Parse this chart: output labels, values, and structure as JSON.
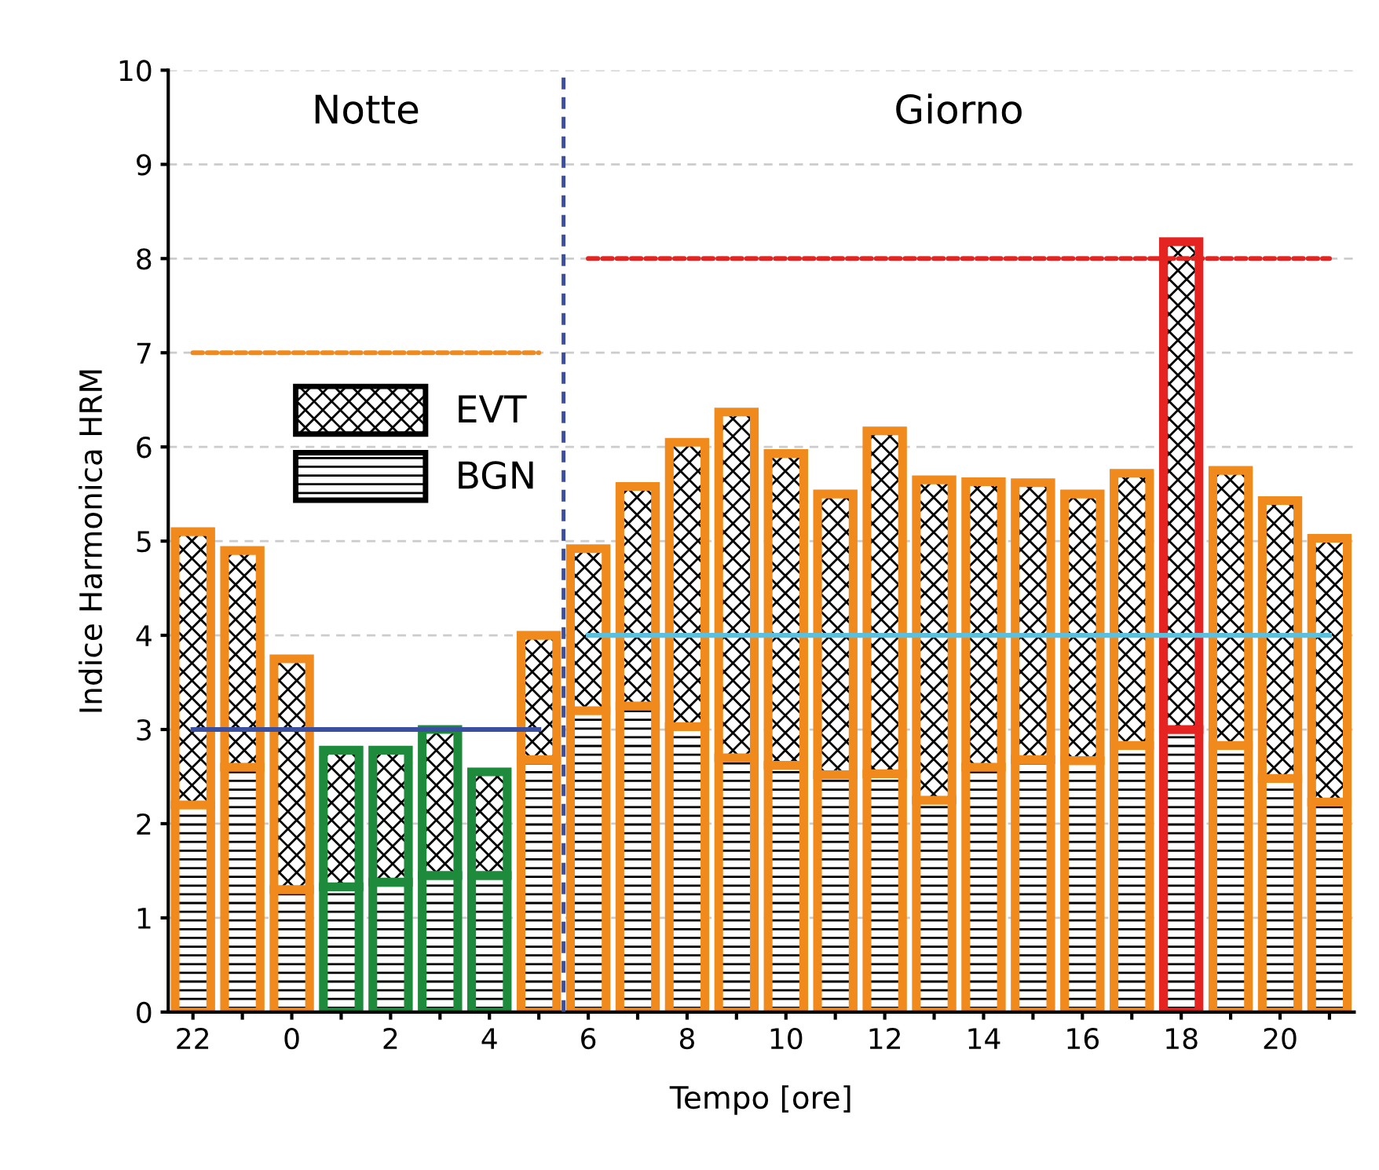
{
  "chart_data": {
    "type": "bar",
    "stacked": true,
    "xlabel": "Tempo [ore]",
    "ylabel": "Indice Harmonica HRM",
    "categories": [
      "22",
      null,
      "0",
      null,
      "2",
      null,
      "4",
      null,
      "6",
      null,
      "8",
      null,
      "10",
      null,
      "12",
      null,
      "14",
      null,
      "16",
      null,
      "18",
      null,
      "20",
      null
    ],
    "series": [
      {
        "name": "BGN",
        "color": "#000000",
        "colors": [
          "#f08a1d",
          "#f08a1d",
          "#f08a1d",
          "#1e8a3c",
          "#1e8a3c",
          "#1e8a3c",
          "#1e8a3c",
          "#f08a1d",
          "#f08a1d",
          "#f08a1d",
          "#f08a1d",
          "#f08a1d",
          "#f08a1d",
          "#f08a1d",
          "#f08a1d",
          "#f08a1d",
          "#f08a1d",
          "#f08a1d",
          "#f08a1d",
          "#f08a1d",
          "#e52421",
          "#f08a1d",
          "#f08a1d",
          "#f08a1d"
        ],
        "values": [
          2.2,
          2.6,
          1.3,
          1.33,
          1.38,
          1.45,
          1.45,
          2.68,
          3.2,
          3.25,
          3.03,
          2.7,
          2.62,
          2.52,
          2.53,
          2.25,
          2.6,
          2.68,
          2.67,
          2.83,
          3.0,
          2.83,
          2.48,
          2.23
        ]
      },
      {
        "name": "EVT",
        "color": "#000000",
        "colors": [
          "#f08a1d",
          "#f08a1d",
          "#f08a1d",
          "#1e8a3c",
          "#1e8a3c",
          "#1e8a3c",
          "#1e8a3c",
          "#f08a1d",
          "#f08a1d",
          "#f08a1d",
          "#f08a1d",
          "#f08a1d",
          "#f08a1d",
          "#f08a1d",
          "#f08a1d",
          "#f08a1d",
          "#f08a1d",
          "#f08a1d",
          "#f08a1d",
          "#f08a1d",
          "#e52421",
          "#f08a1d",
          "#f08a1d",
          "#f08a1d"
        ],
        "values": [
          2.9,
          2.3,
          2.45,
          1.45,
          1.4,
          1.55,
          1.1,
          1.32,
          1.72,
          2.33,
          3.02,
          3.67,
          3.31,
          2.98,
          3.64,
          3.4,
          3.03,
          2.94,
          2.83,
          2.89,
          5.18,
          2.92,
          2.95,
          2.8
        ]
      },
      {
        "type": "line",
        "color": "#f08a1d",
        "line_style": "dashed",
        "values": [
          7,
          7,
          7,
          7,
          7,
          7,
          7,
          7,
          null,
          null,
          null,
          null,
          null,
          null,
          null,
          null,
          null,
          null,
          null,
          null,
          null,
          null,
          null,
          null
        ]
      },
      {
        "type": "line",
        "color": "#3a4fa0",
        "line_style": "solid",
        "values": [
          3,
          3,
          3,
          3,
          3,
          3,
          3,
          3,
          null,
          null,
          null,
          null,
          null,
          null,
          null,
          null,
          null,
          null,
          null,
          null,
          null,
          null,
          null,
          null
        ]
      },
      {
        "type": "line",
        "color": "#e52421",
        "line_style": "dashed",
        "values": [
          null,
          null,
          null,
          null,
          null,
          null,
          null,
          null,
          8,
          8,
          8,
          8,
          8,
          8,
          8,
          8,
          8,
          8,
          8,
          8,
          8,
          8,
          8,
          8
        ]
      },
      {
        "type": "line",
        "color": "#5bc0de",
        "line_style": "solid",
        "values": [
          null,
          null,
          null,
          null,
          null,
          null,
          null,
          null,
          4,
          4,
          4,
          4,
          4,
          4,
          4,
          4,
          4,
          4,
          4,
          4,
          4,
          4,
          4,
          4
        ]
      }
    ],
    "annotations": [
      "Notte",
      "Giorno"
    ],
    "ylim": [
      0,
      10
    ],
    "yticks": [
      0,
      1,
      2,
      3,
      4,
      5,
      6,
      7,
      8,
      9,
      10
    ],
    "grid": "y",
    "legend": "upper left"
  }
}
